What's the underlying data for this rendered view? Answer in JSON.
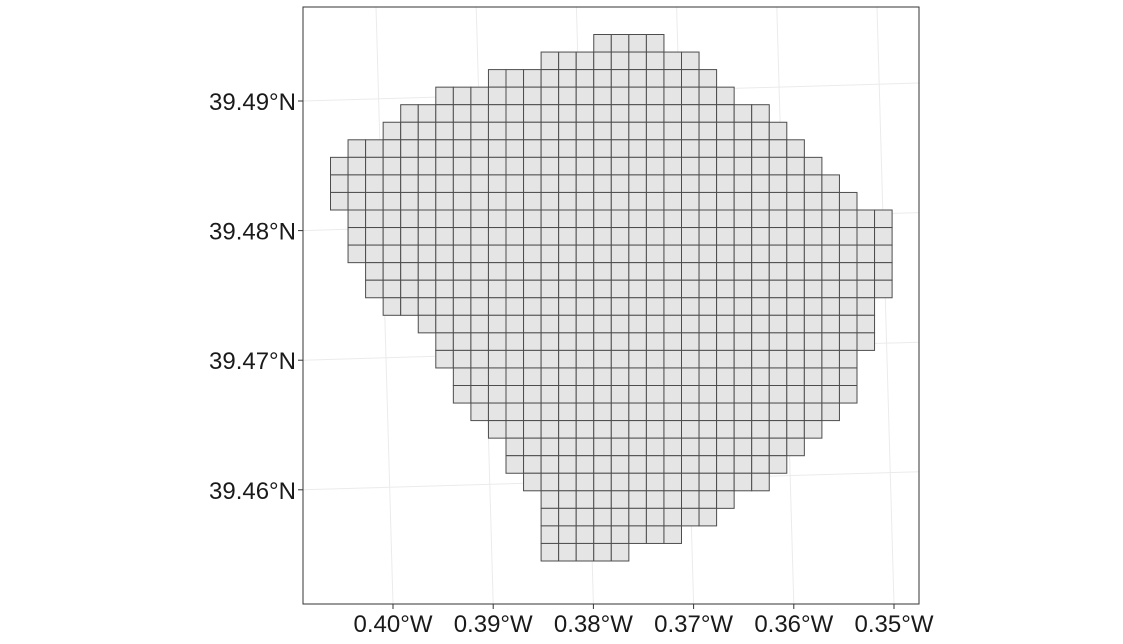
{
  "map": {
    "fill_color": "#e5e5e5",
    "stroke_color": "#4d4d4d",
    "grid_color": "#ebebeb",
    "x_ticks": [
      {
        "label": "0.40°W",
        "value": -0.4
      },
      {
        "label": "0.39°W",
        "value": -0.39
      },
      {
        "label": "0.38°W",
        "value": -0.38
      },
      {
        "label": "0.37°W",
        "value": -0.37
      },
      {
        "label": "0.36°W",
        "value": -0.36
      },
      {
        "label": "0.35°W",
        "value": -0.35
      }
    ],
    "y_ticks": [
      {
        "label": "39.49°N",
        "value": 39.49
      },
      {
        "label": "39.48°N",
        "value": 39.48
      },
      {
        "label": "39.47°N",
        "value": 39.47
      },
      {
        "label": "39.46°N",
        "value": 39.46
      }
    ],
    "grid_rows": [
      {
        "first_col": 15,
        "last_col": 18
      },
      {
        "first_col": 12,
        "last_col": 20
      },
      {
        "first_col": 9,
        "last_col": 21
      },
      {
        "first_col": 6,
        "last_col": 22
      },
      {
        "first_col": 4,
        "last_col": 24
      },
      {
        "first_col": 3,
        "last_col": 25
      },
      {
        "first_col": 1,
        "last_col": 26
      },
      {
        "first_col": 0,
        "last_col": 27
      },
      {
        "first_col": 0,
        "last_col": 28
      },
      {
        "first_col": 0,
        "last_col": 29
      },
      {
        "first_col": 1,
        "last_col": 31
      },
      {
        "first_col": 1,
        "last_col": 31
      },
      {
        "first_col": 1,
        "last_col": 31
      },
      {
        "first_col": 2,
        "last_col": 31
      },
      {
        "first_col": 2,
        "last_col": 31
      },
      {
        "first_col": 3,
        "last_col": 30
      },
      {
        "first_col": 5,
        "last_col": 30
      },
      {
        "first_col": 6,
        "last_col": 30
      },
      {
        "first_col": 6,
        "last_col": 29
      },
      {
        "first_col": 7,
        "last_col": 29
      },
      {
        "first_col": 7,
        "last_col": 29
      },
      {
        "first_col": 8,
        "last_col": 28
      },
      {
        "first_col": 9,
        "last_col": 27
      },
      {
        "first_col": 10,
        "last_col": 26
      },
      {
        "first_col": 10,
        "last_col": 25
      },
      {
        "first_col": 11,
        "last_col": 24
      },
      {
        "first_col": 12,
        "last_col": 22
      },
      {
        "first_col": 12,
        "last_col": 21
      },
      {
        "first_col": 12,
        "last_col": 19
      },
      {
        "first_col": 12,
        "last_col": 16
      }
    ]
  }
}
